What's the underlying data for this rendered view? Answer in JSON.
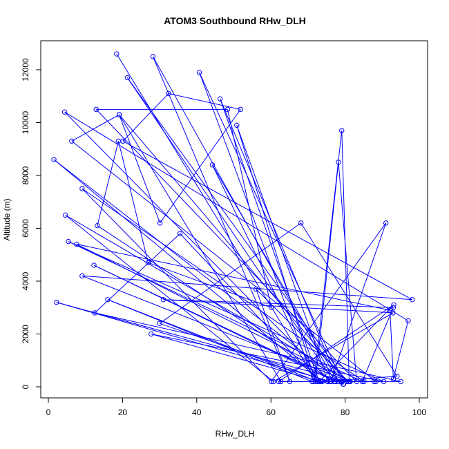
{
  "chart_data": {
    "type": "line",
    "title": "ATOM3 Southbound RHw_DLH",
    "xlabel": "RHw_DLH",
    "ylabel": "Altitude (m)",
    "xlim": [
      0,
      100
    ],
    "ylim": [
      0,
      12000
    ],
    "xticks": [
      0,
      20,
      40,
      60,
      80,
      100
    ],
    "yticks": [
      0,
      2000,
      4000,
      6000,
      8000,
      10000,
      12000
    ],
    "grid": false,
    "legend": "none",
    "color": "#0000ff",
    "x": [
      18.4,
      71.5,
      35.5,
      12.5,
      95.0,
      80.4,
      2.2,
      76.1,
      87.8,
      79.1,
      76.0,
      85.1,
      9.1,
      60.1,
      91.0,
      76.2,
      62.1,
      93.1,
      73.0,
      46.3,
      78.2,
      44.2,
      72.6,
      16.0,
      71.1,
      79.5,
      12.3,
      77.3,
      28.2,
      65.1,
      56.0,
      80.9,
      88.3,
      6.3,
      19.1,
      30.1,
      51.8,
      32.4,
      20.1,
      98.1,
      9.1,
      81.1,
      79.1,
      71.6,
      40.7,
      79.6,
      1.5,
      73.8,
      94.0,
      68.1,
      30.0,
      75.3,
      71.0,
      50.8,
      72.0,
      78.2,
      83.1,
      12.9,
      48.3,
      60.1,
      26.9,
      18.9,
      13.2,
      77.0,
      21.3,
      80.4,
      19.1,
      62.7,
      73.4,
      27.7,
      90.4,
      5.4,
      84.6,
      93.0,
      31.0,
      92.9,
      60.7,
      4.6,
      81.4,
      7.6,
      92.1,
      93.0,
      97.0,
      4.4,
      76.1
    ],
    "y": [
      12600,
      400,
      5800,
      2800,
      200,
      200,
      3200,
      200,
      200,
      200,
      200,
      200,
      7500,
      200,
      6200,
      200,
      200,
      3100,
      200,
      10900,
      200,
      8400,
      200,
      3300,
      200,
      100,
      4600,
      200,
      12500,
      200,
      3700,
      200,
      200,
      9300,
      10300,
      6200,
      10500,
      11100,
      9300,
      3300,
      4200,
      200,
      9700,
      200,
      11900,
      100,
      8600,
      200,
      400,
      6200,
      2400,
      200,
      2000,
      9900,
      200,
      8500,
      200,
      10500,
      10500,
      3000,
      4700,
      9300,
      6100,
      200,
      11700,
      200,
      10300,
      200,
      200,
      2000,
      200,
      5500,
      200,
      3000,
      3300,
      2800,
      200,
      6500,
      200,
      5400,
      2900,
      300,
      2500,
      10400,
      200
    ]
  }
}
